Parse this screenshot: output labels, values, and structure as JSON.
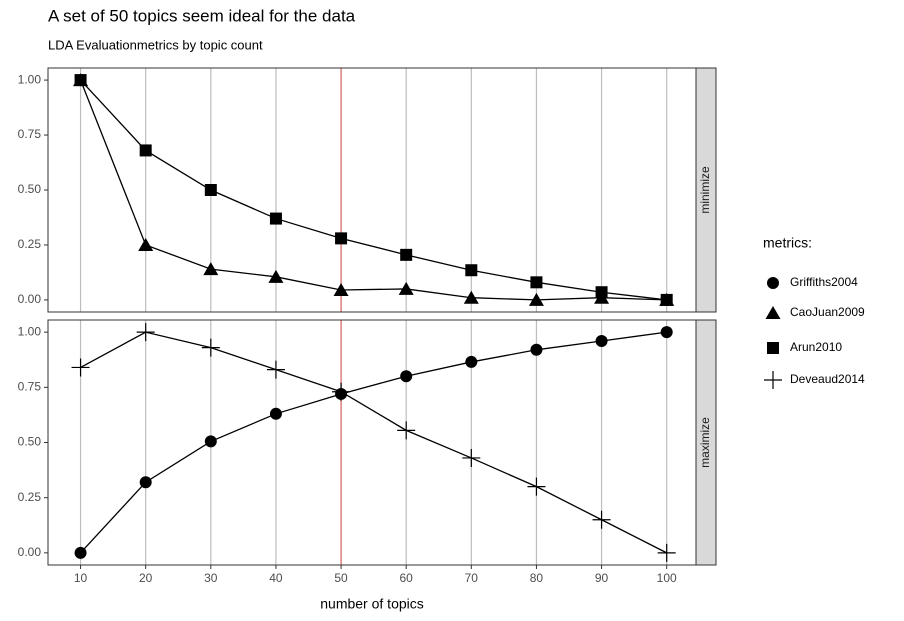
{
  "chart_data": {
    "type": "line",
    "title": "A set of 50 topics seem ideal for the data",
    "subtitle": "LDA Evaluationmetrics by topic count",
    "xlabel": "number of topics",
    "x": [
      10,
      20,
      30,
      40,
      50,
      60,
      70,
      80,
      90,
      100
    ],
    "xlim": [
      5,
      104.5
    ],
    "xticks": [
      10,
      20,
      30,
      40,
      50,
      60,
      70,
      80,
      90,
      100
    ],
    "vline": 50,
    "vline_color": "#e06666",
    "grid": true,
    "legend_title": "metrics:",
    "legend_position": "right",
    "panels": [
      {
        "label": "minimize",
        "ylim": [
          -0.055,
          1.055
        ],
        "yticks": [
          {
            "value": 0,
            "label": "0.00"
          },
          {
            "value": 0.25,
            "label": "0.25"
          },
          {
            "value": 0.5,
            "label": "0.50"
          },
          {
            "value": 0.75,
            "label": "0.75"
          },
          {
            "value": 1,
            "label": "1.00"
          }
        ]
      },
      {
        "label": "maximize",
        "ylim": [
          -0.055,
          1.055
        ],
        "yticks": [
          {
            "value": 0,
            "label": "0.00"
          },
          {
            "value": 0.25,
            "label": "0.25"
          },
          {
            "value": 0.5,
            "label": "0.50"
          },
          {
            "value": 0.75,
            "label": "0.75"
          },
          {
            "value": 1,
            "label": "1.00"
          }
        ]
      }
    ],
    "series": [
      {
        "name": "Griffiths2004",
        "marker": "circle",
        "color": "#000000",
        "panel": 1,
        "values": [
          0,
          0.32,
          0.505,
          0.63,
          0.72,
          0.8,
          0.865,
          0.92,
          0.96,
          1
        ]
      },
      {
        "name": "CaoJuan2009",
        "marker": "triangle",
        "color": "#000000",
        "panel": 0,
        "values": [
          1,
          0.25,
          0.14,
          0.105,
          0.045,
          0.05,
          0.01,
          0,
          0.01,
          0
        ]
      },
      {
        "name": "Arun2010",
        "marker": "square",
        "color": "#000000",
        "panel": 0,
        "values": [
          1,
          0.68,
          0.5,
          0.37,
          0.28,
          0.205,
          0.135,
          0.08,
          0.035,
          0
        ]
      },
      {
        "name": "Deveaud2014",
        "marker": "plus",
        "color": "#000000",
        "panel": 1,
        "values": [
          0.84,
          1,
          0.93,
          0.83,
          0.73,
          0.555,
          0.43,
          0.3,
          0.15,
          0
        ]
      }
    ]
  }
}
